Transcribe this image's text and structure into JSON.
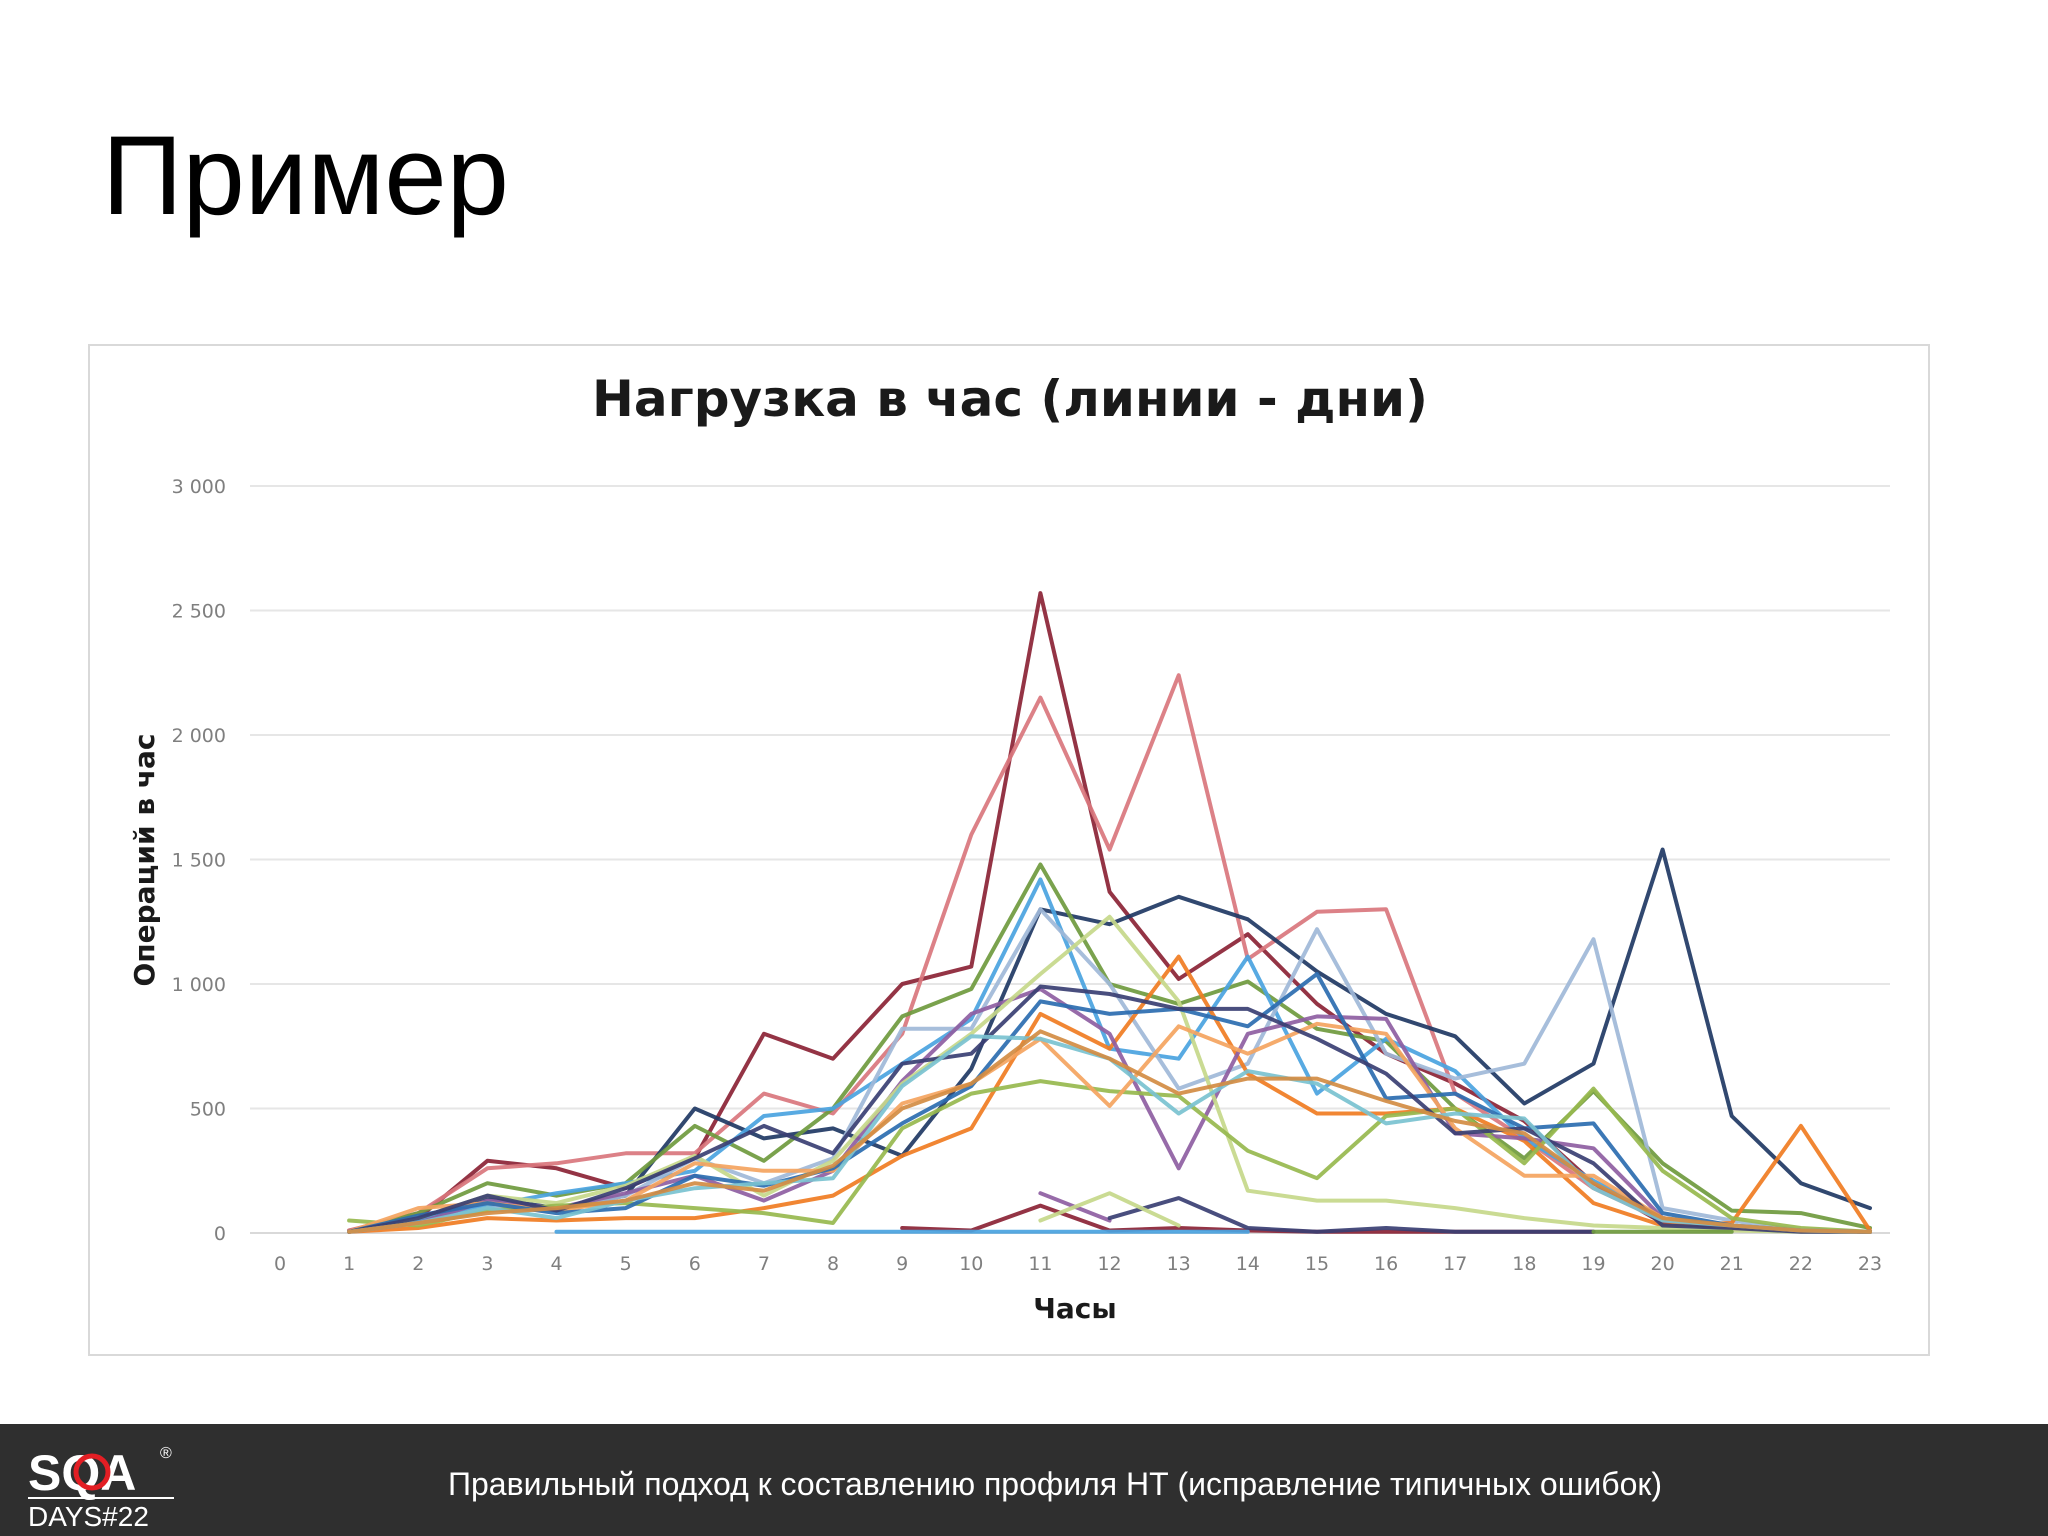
{
  "slide": {
    "title": "Пример",
    "footer_text": "Правильный подход к составлению профиля НТ (исправление типичных ошибок)",
    "logo": {
      "text_top": "SQA",
      "text_bottom": "DAYS#22",
      "mark": "®",
      "accent_color": "#e31e24"
    }
  },
  "chart_data": {
    "type": "line",
    "title": "Нагрузка в час (линии - дни)",
    "xlabel": "Часы",
    "ylabel": "Операций в час",
    "xlim": [
      0,
      23
    ],
    "ylim": [
      0,
      3000
    ],
    "x_ticks": [
      "0",
      "1",
      "2",
      "3",
      "4",
      "5",
      "6",
      "7",
      "8",
      "9",
      "10",
      "11",
      "12",
      "13",
      "14",
      "15",
      "16",
      "17",
      "18",
      "19",
      "20",
      "21",
      "22",
      "23"
    ],
    "y_ticks": [
      {
        "value": 0,
        "label": "0"
      },
      {
        "value": 500,
        "label": "500"
      },
      {
        "value": 1000,
        "label": "1 000"
      },
      {
        "value": 1500,
        "label": "1 500"
      },
      {
        "value": 2000,
        "label": "2 000"
      },
      {
        "value": 2500,
        "label": "2 500"
      },
      {
        "value": 3000,
        "label": "3 000"
      }
    ],
    "grid": true,
    "legend": "none",
    "x": [
      1,
      2,
      3,
      4,
      5,
      6,
      7,
      8,
      9,
      10,
      11,
      12,
      13,
      14,
      15,
      16,
      17,
      18,
      19,
      20,
      21,
      22,
      23
    ],
    "series": [
      {
        "color": "#8b2335",
        "values": [
          10,
          60,
          290,
          260,
          180,
          300,
          800,
          700,
          1000,
          1070,
          2570,
          1370,
          1020,
          1200,
          920,
          720,
          600,
          450,
          200,
          40,
          20,
          10,
          5
        ]
      },
      {
        "color": "#d9767d",
        "values": [
          10,
          80,
          260,
          280,
          320,
          320,
          560,
          480,
          800,
          1600,
          2150,
          1540,
          2240,
          1100,
          1290,
          1300,
          560,
          380,
          180,
          50,
          30,
          10,
          5
        ]
      },
      {
        "color": "#1f3864",
        "values": [
          5,
          50,
          140,
          100,
          150,
          500,
          380,
          420,
          310,
          660,
          1300,
          1240,
          1350,
          1260,
          1050,
          880,
          790,
          520,
          680,
          1540,
          470,
          200,
          100
        ]
      },
      {
        "color": "#6f9a3e",
        "values": [
          5,
          80,
          200,
          150,
          200,
          430,
          290,
          500,
          870,
          980,
          1480,
          1000,
          920,
          1010,
          820,
          770,
          500,
          300,
          570,
          280,
          90,
          80,
          20
        ]
      },
      {
        "color": "#4aa3df",
        "values": [
          5,
          50,
          110,
          160,
          200,
          250,
          470,
          500,
          680,
          860,
          1420,
          740,
          700,
          1110,
          560,
          780,
          650,
          380,
          210,
          60,
          30,
          10,
          5
        ]
      },
      {
        "color": "#9fb8d8",
        "values": [
          5,
          40,
          100,
          90,
          150,
          300,
          200,
          300,
          820,
          820,
          1300,
          1000,
          580,
          680,
          1220,
          720,
          620,
          680,
          1180,
          100,
          50,
          10,
          5
        ]
      },
      {
        "color": "#f07c22",
        "values": [
          5,
          20,
          60,
          50,
          60,
          60,
          100,
          150,
          310,
          420,
          880,
          740,
          1110,
          640,
          480,
          480,
          500,
          370,
          120,
          30,
          40,
          430,
          10
        ]
      },
      {
        "color": "#8e5ea2",
        "values": [
          5,
          40,
          130,
          100,
          160,
          230,
          130,
          250,
          610,
          880,
          980,
          800,
          260,
          800,
          870,
          860,
          400,
          380,
          340,
          60,
          20,
          10,
          5
        ]
      },
      {
        "color": "#c5d88a",
        "values": [
          5,
          60,
          150,
          120,
          190,
          310,
          150,
          290,
          600,
          800,
          1040,
          1270,
          930,
          170,
          130,
          130,
          100,
          60,
          30,
          20,
          10,
          5,
          5
        ]
      },
      {
        "color": "#97b94e",
        "values": [
          50,
          30,
          90,
          110,
          120,
          100,
          80,
          40,
          420,
          560,
          610,
          570,
          550,
          330,
          220,
          470,
          500,
          280,
          580,
          250,
          60,
          20,
          5
        ]
      },
      {
        "color": "#f4a460",
        "values": [
          5,
          100,
          120,
          90,
          130,
          280,
          250,
          250,
          520,
          600,
          780,
          510,
          830,
          720,
          840,
          800,
          420,
          230,
          230,
          60,
          20,
          10,
          5
        ]
      },
      {
        "color": "#2b6cb0",
        "values": [
          5,
          70,
          120,
          80,
          100,
          230,
          190,
          260,
          440,
          590,
          930,
          880,
          900,
          830,
          1040,
          540,
          560,
          420,
          440,
          80,
          30,
          10,
          5
        ]
      },
      {
        "color": "#3a3f73",
        "values": [
          5,
          60,
          150,
          90,
          180,
          300,
          430,
          320,
          680,
          720,
          990,
          960,
          900,
          900,
          780,
          640,
          400,
          420,
          280,
          30,
          20,
          5,
          5
        ]
      },
      {
        "color": "#79c2d0",
        "values": [
          5,
          40,
          100,
          60,
          130,
          180,
          200,
          220,
          590,
          790,
          780,
          700,
          480,
          650,
          600,
          440,
          480,
          460,
          180,
          50,
          30,
          10,
          5
        ]
      },
      {
        "color": "#d28c43",
        "values": [
          5,
          40,
          80,
          100,
          130,
          200,
          170,
          270,
          500,
          600,
          810,
          700,
          560,
          620,
          620,
          530,
          450,
          400,
          200,
          60,
          30,
          10,
          5
        ]
      },
      {
        "color": "#8b2335",
        "values": [
          null,
          null,
          null,
          null,
          null,
          null,
          null,
          null,
          20,
          10,
          110,
          10,
          20,
          10,
          5,
          5,
          5,
          5,
          5,
          null,
          null,
          null,
          null
        ]
      },
      {
        "color": "#8e5ea2",
        "values": [
          null,
          null,
          null,
          null,
          null,
          null,
          null,
          null,
          null,
          null,
          160,
          50,
          null,
          null,
          null,
          null,
          null,
          null,
          null,
          null,
          null,
          null,
          null
        ]
      },
      {
        "color": "#3a3f73",
        "values": [
          null,
          null,
          null,
          null,
          null,
          null,
          null,
          null,
          null,
          null,
          null,
          60,
          140,
          20,
          5,
          20,
          5,
          5,
          5,
          null,
          null,
          null,
          null
        ]
      },
      {
        "color": "#c5d88a",
        "values": [
          null,
          null,
          null,
          null,
          null,
          null,
          null,
          null,
          null,
          null,
          50,
          160,
          30,
          null,
          null,
          null,
          null,
          null,
          null,
          null,
          null,
          null,
          null
        ]
      },
      {
        "color": "#4aa3df",
        "values": [
          null,
          null,
          null,
          5,
          5,
          5,
          5,
          5,
          5,
          5,
          5,
          5,
          5,
          5,
          null,
          null,
          null,
          null,
          null,
          null,
          null,
          null,
          null
        ]
      },
      {
        "color": "#6f9a3e",
        "values": [
          null,
          null,
          null,
          null,
          null,
          null,
          null,
          null,
          null,
          null,
          null,
          null,
          null,
          null,
          null,
          null,
          null,
          null,
          5,
          5,
          5,
          null,
          null
        ]
      }
    ]
  }
}
